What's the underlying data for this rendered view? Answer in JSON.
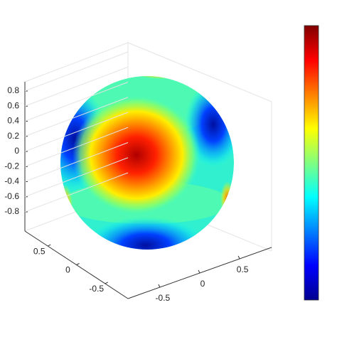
{
  "chart_data": {
    "type": "surface",
    "zlim": [
      -0.9,
      0.9
    ],
    "zticks": [
      -0.8,
      -0.6,
      -0.4,
      -0.2,
      0,
      0.2,
      0.4,
      0.6,
      0.8
    ],
    "xlim": [
      -0.9,
      0.9
    ],
    "xticks": [
      -0.5,
      0,
      0.5
    ],
    "ylim": [
      -0.9,
      0.9
    ],
    "yticks": [
      -0.5,
      0,
      0.5
    ],
    "grid": true,
    "colormap": "jet"
  }
}
